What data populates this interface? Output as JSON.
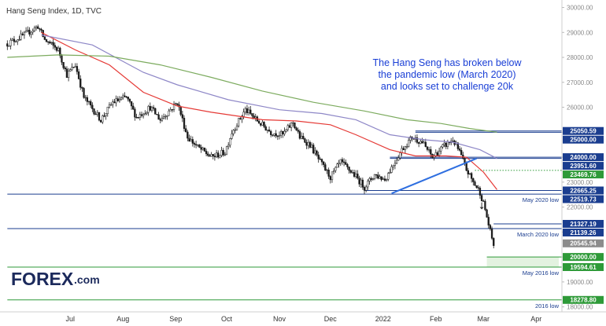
{
  "title": "Hang Seng Index, 1D, TVC",
  "annotation": [
    "The Hang Seng has broken below",
    "the pandemic low (March 2020)",
    "and looks set to challenge 20k"
  ],
  "logo": {
    "main": "FOREX",
    "suffix": ".com"
  },
  "colors": {
    "candle": "#1a1a1a",
    "ma_fast": "#e53935",
    "ma_mid": "#8e87c7",
    "ma_slow": "#7cab5e",
    "level_blue": "#1a3d8f",
    "level_green": "#2e9a38",
    "trendline": "#2f6fe0",
    "annotation": "#1a3fd6"
  },
  "chart_data": {
    "type": "candlestick",
    "symbol": "Hang Seng Index",
    "timeframe": "1D",
    "source": "TVC",
    "ylim": [
      17800,
      30300
    ],
    "y_ticks": [
      18000,
      19000,
      20000,
      21000,
      22000,
      23000,
      24000,
      25000,
      26000,
      27000,
      28000,
      29000,
      30000
    ],
    "y_tick_labels": [
      "18000.00",
      "19000.00",
      "20000.00",
      "21000.00",
      "22000.00",
      "23000.00",
      "24000.00",
      "25000.00",
      "26000.00",
      "27000.00",
      "28000.00",
      "29000.00",
      "30000.00"
    ],
    "x_months": [
      {
        "label": "Jul",
        "day": 37
      },
      {
        "label": "Aug",
        "day": 68
      },
      {
        "label": "Sep",
        "day": 99
      },
      {
        "label": "Oct",
        "day": 129
      },
      {
        "label": "Nov",
        "day": 160
      },
      {
        "label": "Dec",
        "day": 190
      },
      {
        "label": "2022",
        "day": 221
      },
      {
        "label": "Feb",
        "day": 252
      },
      {
        "label": "Mar",
        "day": 280
      },
      {
        "label": "Apr",
        "day": 311
      }
    ],
    "close_path": [
      [
        0,
        28550
      ],
      [
        10,
        28900
      ],
      [
        18,
        29250
      ],
      [
        22,
        28700
      ],
      [
        30,
        28300
      ],
      [
        35,
        27300
      ],
      [
        40,
        27700
      ],
      [
        45,
        26400
      ],
      [
        55,
        25500
      ],
      [
        62,
        26200
      ],
      [
        70,
        26400
      ],
      [
        76,
        25600
      ],
      [
        84,
        26000
      ],
      [
        90,
        25500
      ],
      [
        100,
        26200
      ],
      [
        106,
        24800
      ],
      [
        112,
        24400
      ],
      [
        120,
        24000
      ],
      [
        128,
        24200
      ],
      [
        132,
        25000
      ],
      [
        140,
        25900
      ],
      [
        148,
        25400
      ],
      [
        155,
        25000
      ],
      [
        162,
        24900
      ],
      [
        168,
        25400
      ],
      [
        172,
        24800
      ],
      [
        178,
        24500
      ],
      [
        184,
        23800
      ],
      [
        190,
        23200
      ],
      [
        196,
        23800
      ],
      [
        204,
        23300
      ],
      [
        210,
        22800
      ],
      [
        216,
        23300
      ],
      [
        222,
        23100
      ],
      [
        226,
        23600
      ],
      [
        232,
        24300
      ],
      [
        238,
        24800
      ],
      [
        244,
        24600
      ],
      [
        250,
        24000
      ],
      [
        256,
        24400
      ],
      [
        262,
        24700
      ],
      [
        266,
        24200
      ],
      [
        270,
        23500
      ],
      [
        274,
        23000
      ],
      [
        278,
        22600
      ],
      [
        281,
        21900
      ],
      [
        284,
        21000
      ],
      [
        286,
        20500
      ]
    ],
    "candles": {
      "count": 287,
      "first_day": 0,
      "last_day": 286
    },
    "moving_averages": [
      {
        "name": "MA fast",
        "color": "#e53935",
        "path": [
          [
            20,
            29000
          ],
          [
            40,
            28300
          ],
          [
            60,
            27700
          ],
          [
            80,
            26600
          ],
          [
            100,
            26050
          ],
          [
            120,
            25800
          ],
          [
            150,
            25500
          ],
          [
            170,
            25450
          ],
          [
            190,
            25300
          ],
          [
            205,
            24900
          ],
          [
            225,
            24300
          ],
          [
            240,
            24050
          ],
          [
            258,
            24050
          ],
          [
            270,
            24000
          ],
          [
            280,
            23400
          ],
          [
            288,
            22700
          ]
        ]
      },
      {
        "name": "MA mid",
        "color": "#8e87c7",
        "path": [
          [
            20,
            28900
          ],
          [
            50,
            28500
          ],
          [
            80,
            27400
          ],
          [
            100,
            26900
          ],
          [
            130,
            26300
          ],
          [
            160,
            25900
          ],
          [
            185,
            25750
          ],
          [
            205,
            25500
          ],
          [
            225,
            24900
          ],
          [
            245,
            24700
          ],
          [
            262,
            24600
          ],
          [
            278,
            24300
          ],
          [
            288,
            23950
          ]
        ]
      },
      {
        "name": "MA slow",
        "color": "#7cab5e",
        "path": [
          [
            0,
            28000
          ],
          [
            30,
            28100
          ],
          [
            60,
            28050
          ],
          [
            90,
            27700
          ],
          [
            120,
            27200
          ],
          [
            150,
            26650
          ],
          [
            180,
            26200
          ],
          [
            210,
            25850
          ],
          [
            235,
            25500
          ],
          [
            255,
            25350
          ],
          [
            272,
            25150
          ],
          [
            288,
            25000
          ]
        ]
      }
    ],
    "trendline": {
      "color": "#2f6fe0",
      "from": [
        226,
        22550
      ],
      "to": [
        276,
        23950
      ]
    },
    "levels": [
      {
        "value": 25050.59,
        "label": "25050.59",
        "color": "#1a3d8f",
        "start_day": 240,
        "line": "solid"
      },
      {
        "value": 25000.0,
        "label": "25000.00",
        "color": "#1a3d8f",
        "start_day": 240,
        "line": "solid"
      },
      {
        "value": 24000.0,
        "label": "24000.00",
        "color": "#1a3d8f",
        "start_day": 225,
        "line": "solid"
      },
      {
        "value": 23951.6,
        "label": "23951.60",
        "color": "#1a3d8f",
        "start_day": 225,
        "line": "solid"
      },
      {
        "value": 23469.76,
        "label": "23469.76",
        "color": "#2e9a38",
        "start_day": 275,
        "line": "dotted"
      },
      {
        "value": 22665.25,
        "label": "22665.25",
        "color": "#1a3d8f",
        "start_day": 210,
        "line": "solid"
      },
      {
        "value": 22519.73,
        "label": "22519.73",
        "color": "#1a3d8f",
        "start_day": 0,
        "line": "solid"
      },
      {
        "value": 21327.19,
        "label": "21327.19",
        "color": "#1a3d8f",
        "start_day": 286,
        "line": "solid"
      },
      {
        "value": 21139.26,
        "label": "21139.26",
        "color": "#1a3d8f",
        "start_day": 0,
        "line": "solid"
      },
      {
        "value": 20545.94,
        "label": "20545.94",
        "color": "#8c8c8c",
        "start_day": 286,
        "line": "none"
      },
      {
        "value": 20000.0,
        "label": "20000.00",
        "color": "#2e9a38",
        "start_day": 282,
        "line": "solid"
      },
      {
        "value": 19594.61,
        "label": "19594.61",
        "color": "#2e9a38",
        "start_day": 0,
        "line": "solid"
      },
      {
        "value": 18278.8,
        "label": "18278.80",
        "color": "#2e9a38",
        "start_day": 0,
        "line": "solid"
      }
    ],
    "zones": [
      {
        "from": 20000,
        "to": 19594.61,
        "color": "#e3f2e0",
        "start_day": 282
      }
    ],
    "zone_labels": [
      {
        "text": "May 2020 low",
        "value": 22519.73
      },
      {
        "text": "March 2020 low",
        "value": 21139.26
      },
      {
        "text": "May 2016 low",
        "value": 19594.61
      },
      {
        "text": "2016 low",
        "value": 18278.8
      }
    ]
  }
}
